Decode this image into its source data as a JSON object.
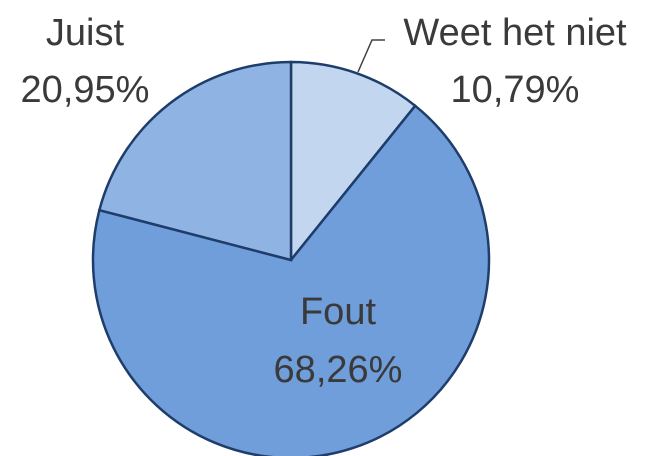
{
  "chart_data": {
    "type": "pie",
    "categories": [
      "Weet het niet",
      "Fout",
      "Juist"
    ],
    "values": [
      10.79,
      68.26,
      20.95
    ],
    "value_labels": [
      "10,79%",
      "68,26%",
      "20,95%"
    ],
    "colors": [
      "#c3d6f0",
      "#6f9edb",
      "#8fb4e4"
    ]
  }
}
